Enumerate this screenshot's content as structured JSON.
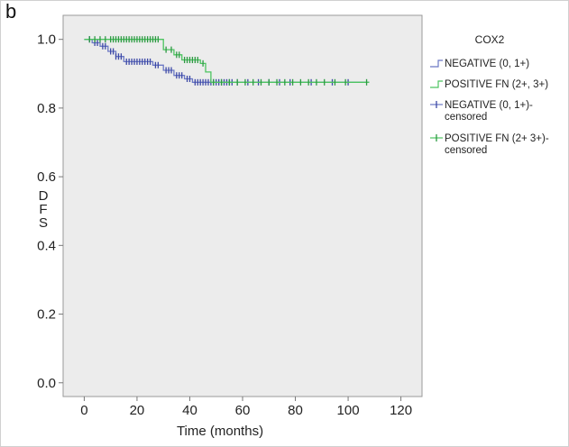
{
  "panel_label": "b",
  "colors": {
    "plot_background": "#ececec",
    "negative": "#6b78c4",
    "negative_dark": "#3c48a6",
    "positive": "#4cc460",
    "positive_dark": "#2c9a42"
  },
  "chart_data": {
    "type": "line",
    "subtype": "kaplan-meier step",
    "title": "",
    "xlabel": "Time (months)",
    "ylabel": "DFS",
    "xlim": [
      -8,
      128
    ],
    "ylim": [
      -0.04,
      1.07
    ],
    "x_ticks": [
      0,
      20,
      40,
      60,
      80,
      100,
      120
    ],
    "y_ticks": [
      0.0,
      0.2,
      0.4,
      0.6,
      0.8,
      1.0
    ],
    "x_tick_labels": [
      "0",
      "20",
      "40",
      "60",
      "80",
      "100",
      "120"
    ],
    "y_tick_labels": [
      "0.0",
      "0.2",
      "0.4",
      "0.6",
      "0.8",
      "1.0"
    ],
    "legend": {
      "title": "COX2",
      "placement": "right",
      "entries": [
        {
          "label": "NEGATIVE (0, 1+)",
          "kind": "line",
          "series": "negative"
        },
        {
          "label": "POSITIVE FN (2+, 3+)",
          "kind": "line",
          "series": "positive"
        },
        {
          "label": "NEGATIVE (0, 1+)-",
          "label2": "censored",
          "kind": "censor",
          "series": "negative"
        },
        {
          "label": "POSITIVE FN (2+ 3+)-",
          "label2": "censored",
          "kind": "censor",
          "series": "positive"
        }
      ]
    },
    "series": [
      {
        "key": "negative",
        "steps": [
          [
            0,
            1.0
          ],
          [
            3,
            0.99
          ],
          [
            6,
            0.98
          ],
          [
            9,
            0.965
          ],
          [
            12,
            0.95
          ],
          [
            15,
            0.935
          ],
          [
            26,
            0.925
          ],
          [
            30,
            0.91
          ],
          [
            34,
            0.895
          ],
          [
            38,
            0.885
          ],
          [
            41,
            0.875
          ],
          [
            108,
            0.875
          ]
        ],
        "censored": [
          2,
          4,
          5,
          7,
          8,
          10,
          11,
          12,
          13,
          14,
          16,
          17,
          18,
          19,
          20,
          21,
          22,
          23,
          24,
          25,
          27,
          28,
          31,
          32,
          33,
          35,
          36,
          37,
          39,
          40,
          42,
          43,
          44,
          45,
          46,
          47,
          48,
          49,
          50,
          51,
          52,
          53,
          54,
          55,
          56,
          58,
          62,
          66,
          70,
          74,
          78,
          86,
          94,
          100
        ]
      },
      {
        "key": "positive",
        "steps": [
          [
            0,
            1.0
          ],
          [
            30,
            0.97
          ],
          [
            34,
            0.955
          ],
          [
            37,
            0.94
          ],
          [
            44,
            0.93
          ],
          [
            46,
            0.905
          ],
          [
            48,
            0.875
          ],
          [
            108,
            0.875
          ]
        ],
        "censored": [
          2,
          4,
          6,
          8,
          10,
          11,
          12,
          13,
          14,
          15,
          16,
          17,
          18,
          19,
          20,
          21,
          22,
          23,
          24,
          25,
          26,
          27,
          28,
          31,
          33,
          35,
          36,
          38,
          39,
          40,
          41,
          42,
          43,
          45,
          49,
          52,
          55,
          58,
          61,
          64,
          67,
          70,
          73,
          76,
          79,
          82,
          85,
          88,
          91,
          95,
          99,
          107
        ]
      }
    ]
  }
}
